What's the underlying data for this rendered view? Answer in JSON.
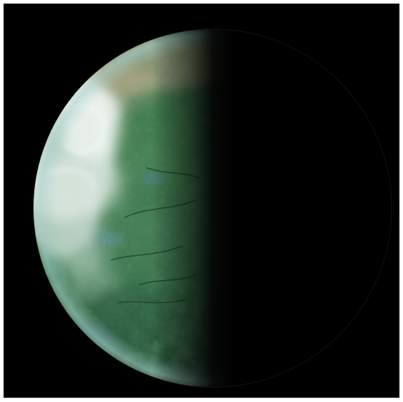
{
  "image": {
    "subject": "planet-crescent",
    "colors": {
      "frame_border": "#ffffff",
      "space": "#000000",
      "surface_green": "#3f7a4e",
      "surface_dark_green": "#2a5a3a",
      "cloud_white": "#dfe8e2",
      "haze_tan": "#c8b79a",
      "limb_blue": "#6fa3b0"
    }
  }
}
